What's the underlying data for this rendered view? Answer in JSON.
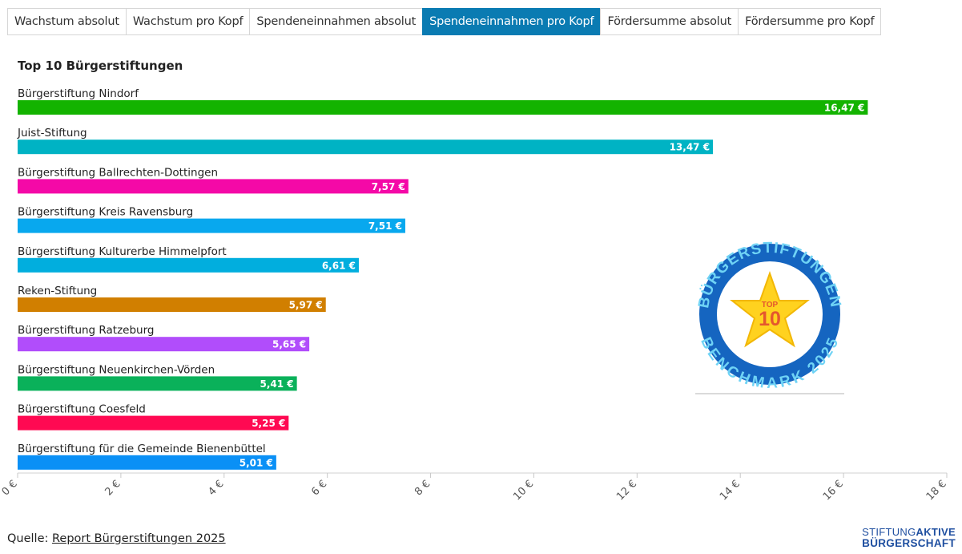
{
  "tabs": [
    {
      "label": "Wachstum absolut",
      "active": false
    },
    {
      "label": "Wachstum pro Kopf",
      "active": false
    },
    {
      "label": "Spendeneinnahmen absolut",
      "active": false
    },
    {
      "label": "Spendeneinnahmen pro Kopf",
      "active": true
    },
    {
      "label": "Fördersumme absolut",
      "active": false
    },
    {
      "label": "Fördersumme pro Kopf",
      "active": false
    }
  ],
  "chart_data": {
    "type": "bar",
    "orientation": "horizontal",
    "title": "Top 10 Bürgerstiftungen",
    "xlim": [
      0,
      18
    ],
    "xticks": [
      {
        "value": 0,
        "label": "0 €"
      },
      {
        "value": 2,
        "label": "2 €"
      },
      {
        "value": 4,
        "label": "4 €"
      },
      {
        "value": 6,
        "label": "6 €"
      },
      {
        "value": 8,
        "label": "8 €"
      },
      {
        "value": 10,
        "label": "10 €"
      },
      {
        "value": 12,
        "label": "12 €"
      },
      {
        "value": 14,
        "label": "14 €"
      },
      {
        "value": 16,
        "label": "16 €"
      },
      {
        "value": 18,
        "label": "18 €"
      }
    ],
    "bars": [
      {
        "category": "Bürgerstiftung Nindorf",
        "value": 16.47,
        "label": "16,47 €",
        "color": "#13b300"
      },
      {
        "category": "Juist-Stiftung",
        "value": 13.47,
        "label": "13,47 €",
        "color": "#00b3c4"
      },
      {
        "category": "Bürgerstiftung Ballrechten-Dottingen",
        "value": 7.57,
        "label": "7,57 €",
        "color": "#f409a7"
      },
      {
        "category": "Bürgerstiftung Kreis Ravensburg",
        "value": 7.51,
        "label": "7,51 €",
        "color": "#08a8ee"
      },
      {
        "category": "Bürgerstiftung Kulturerbe Himmelpfort",
        "value": 6.61,
        "label": "6,61 €",
        "color": "#01aede"
      },
      {
        "category": "Reken-Stiftung",
        "value": 5.97,
        "label": "5,97 €",
        "color": "#d17f00"
      },
      {
        "category": "Bürgerstiftung Ratzeburg",
        "value": 5.65,
        "label": "5,65 €",
        "color": "#b14dfb"
      },
      {
        "category": "Bürgerstiftung Neuenkirchen-Vörden",
        "value": 5.41,
        "label": "5,41 €",
        "color": "#0ab15a"
      },
      {
        "category": "Bürgerstiftung Coesfeld",
        "value": 5.25,
        "label": "5,25 €",
        "color": "#ff0952"
      },
      {
        "category": "Bürgerstiftung für die Gemeinde Bienenbüttel",
        "value": 5.01,
        "label": "5,01 €",
        "color": "#0a90f6"
      }
    ]
  },
  "badge": {
    "ring_text_top": "BÜRGERSTIFTUNGEN",
    "ring_text_bottom": "BENCHMARK 2025",
    "star_top": "TOP",
    "star_number": "10",
    "ring_color": "#1565c0",
    "text_color": "#6fd3f5",
    "star_color": "#ffd21f"
  },
  "source": {
    "prefix": "Quelle: ",
    "link_text": "Report Bürgerstiftungen 2025"
  },
  "brand": {
    "line1_a": "STIFTUNG",
    "line1_b": "AKTIVE",
    "line2": "BÜRGERSCHAFT"
  }
}
